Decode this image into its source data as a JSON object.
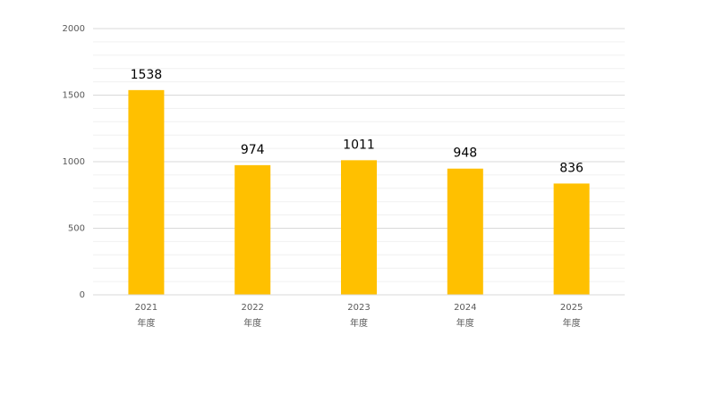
{
  "chart_data": {
    "type": "bar",
    "categories": [
      "2021\n年度",
      "2022\n年度",
      "2023\n年度",
      "2024\n年度",
      "2025\n年度"
    ],
    "values": [
      1538,
      974,
      1011,
      948,
      836
    ],
    "color": "#ffc000",
    "ylim": [
      0,
      2000
    ],
    "yticks": [
      0,
      500,
      1000,
      1500,
      2000
    ],
    "minor_yticks": [
      100,
      200,
      300,
      400,
      600,
      700,
      800,
      900,
      1100,
      1200,
      1300,
      1400,
      1600,
      1700,
      1800,
      1900
    ],
    "grid": true
  }
}
